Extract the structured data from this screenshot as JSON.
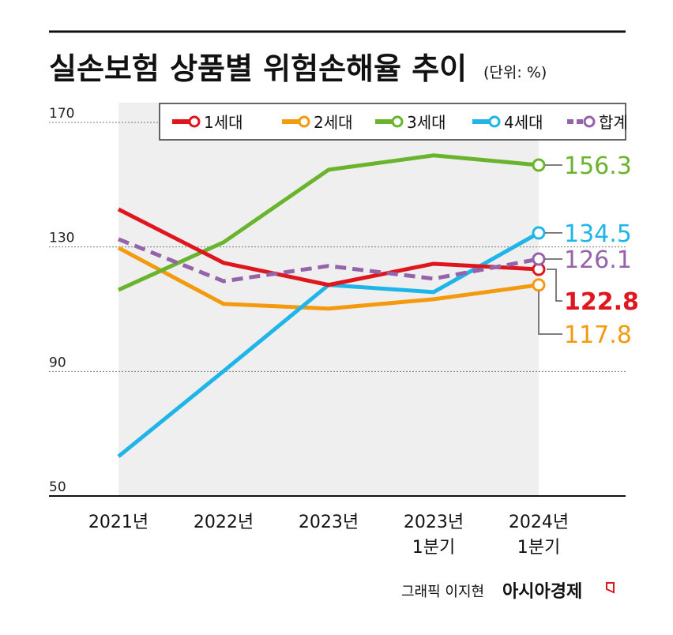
{
  "title": "실손보험 상품별 위험손해율 추이",
  "unit": "(단위: %)",
  "credit": "그래픽 이지현",
  "brand": "아시아경제",
  "chart_data": {
    "type": "line",
    "title": "실손보험 상품별 위험손해율 추이",
    "categories": [
      "2021년",
      "2022년",
      "2023년",
      "2023년 1분기",
      "2024년 1분기"
    ],
    "category_lines": [
      [
        "2021년"
      ],
      [
        "2022년"
      ],
      [
        "2023년"
      ],
      [
        "2023년",
        "1분기"
      ],
      [
        "2024년",
        "1분기"
      ]
    ],
    "ylim": [
      50,
      170
    ],
    "yticks": [
      50,
      90,
      130,
      170
    ],
    "grid": "dotted horizontal",
    "legend": "top",
    "series": [
      {
        "name": "1세대",
        "color": "#e0161e",
        "dashed": false,
        "values": [
          142.1,
          124.9,
          117.8,
          124.6,
          122.8
        ],
        "end_label": "122.8"
      },
      {
        "name": "2세대",
        "color": "#f39a0f",
        "dashed": false,
        "values": [
          129.7,
          111.7,
          110.2,
          113.2,
          117.8
        ],
        "end_label": "117.8"
      },
      {
        "name": "3세대",
        "color": "#6ab42d",
        "dashed": false,
        "values": [
          116.2,
          131.5,
          154.8,
          159.4,
          156.3
        ],
        "end_label": "156.3"
      },
      {
        "name": "4세대",
        "color": "#1fb5e9",
        "dashed": false,
        "values": [
          62.7,
          90.1,
          117.8,
          115.5,
          134.5
        ],
        "end_label": "134.5"
      },
      {
        "name": "합계",
        "color": "#9463aa",
        "dashed": true,
        "values": [
          132.5,
          119.0,
          123.9,
          119.8,
          126.1
        ],
        "end_label": "126.1"
      }
    ]
  }
}
